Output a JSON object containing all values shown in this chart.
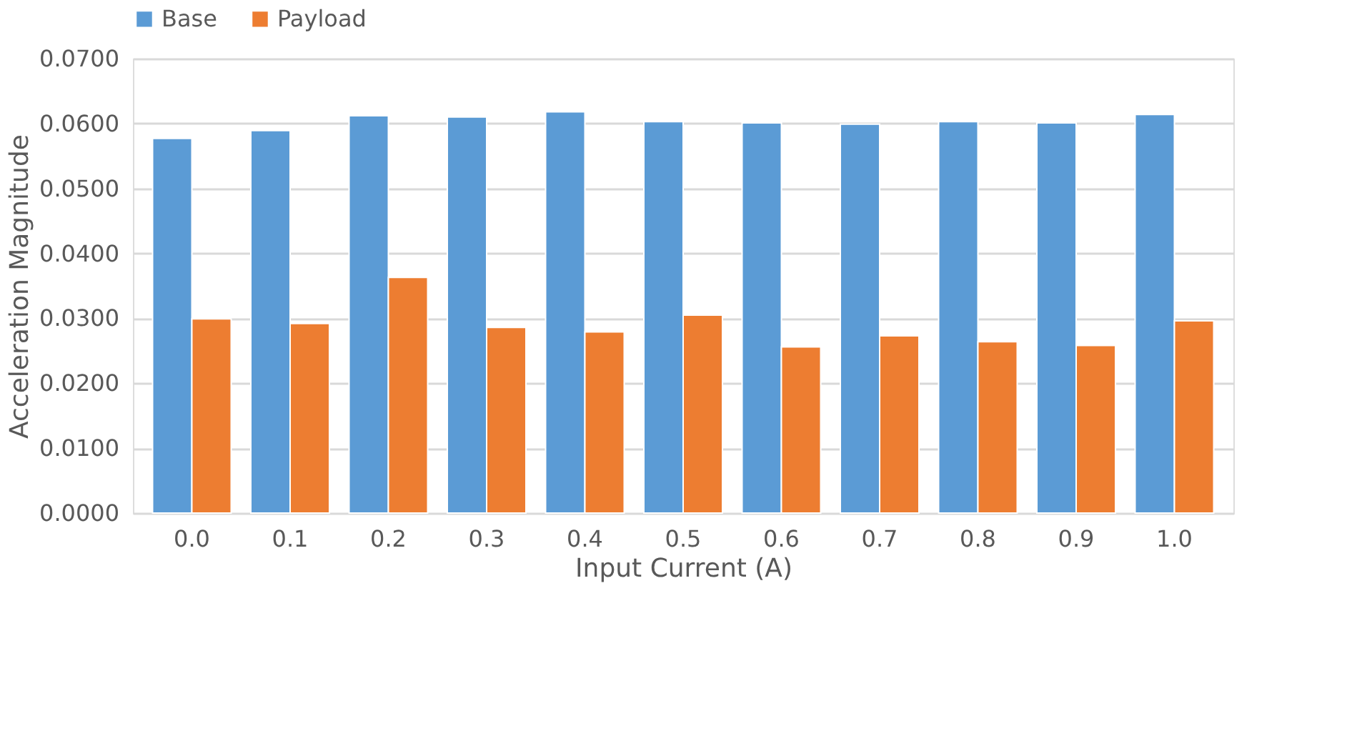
{
  "chart_data": {
    "type": "bar",
    "xlabel": "Input Current (A)",
    "ylabel": "Acceleration Magnitude",
    "categories": [
      "0.0",
      "0.1",
      "0.2",
      "0.3",
      "0.4",
      "0.5",
      "0.6",
      "0.7",
      "0.8",
      "0.9",
      "1.0"
    ],
    "series": [
      {
        "name": "Base",
        "color": "#5b9bd5",
        "values": [
          0.0577,
          0.0589,
          0.0612,
          0.061,
          0.0618,
          0.0603,
          0.0601,
          0.0599,
          0.0603,
          0.0601,
          0.0614
        ]
      },
      {
        "name": "Payload",
        "color": "#ed7d31",
        "values": [
          0.0299,
          0.0292,
          0.0363,
          0.0286,
          0.0279,
          0.0305,
          0.0256,
          0.0273,
          0.0264,
          0.0258,
          0.0296
        ]
      }
    ],
    "ylim": [
      0,
      0.07
    ],
    "yticks": [
      {
        "value": 0,
        "label": "0.0000"
      },
      {
        "value": 0.01,
        "label": "0.0100"
      },
      {
        "value": 0.02,
        "label": "0.0200"
      },
      {
        "value": 0.03,
        "label": "0.0300"
      },
      {
        "value": 0.04,
        "label": "0.0400"
      },
      {
        "value": 0.05,
        "label": "0.0500"
      },
      {
        "value": 0.06,
        "label": "0.0600"
      },
      {
        "value": 0.07,
        "label": "0.0700"
      }
    ],
    "grid": "y",
    "legend": "top"
  }
}
